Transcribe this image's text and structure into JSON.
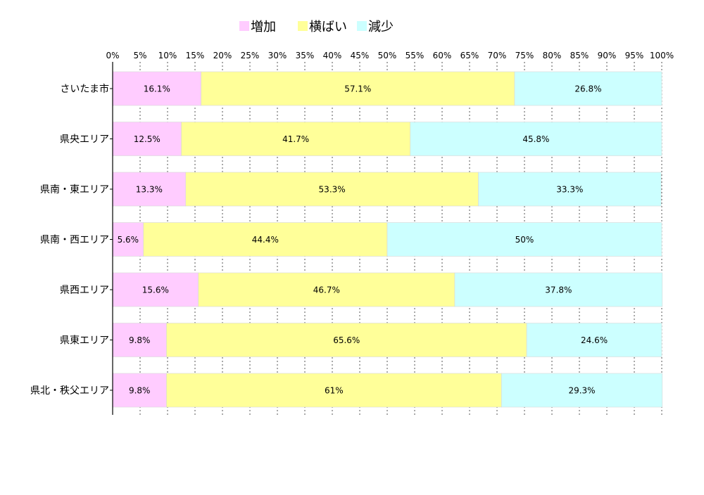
{
  "chart_data": {
    "type": "bar",
    "orientation": "horizontal",
    "stacked": true,
    "title": "",
    "xlabel": "",
    "ylabel": "",
    "xlim": [
      0,
      100
    ],
    "x_ticks": [
      0,
      5,
      10,
      15,
      20,
      25,
      30,
      35,
      40,
      45,
      50,
      55,
      60,
      65,
      70,
      75,
      80,
      85,
      90,
      95,
      100
    ],
    "tick_suffix": "%",
    "grid": "vertical dashed",
    "legend_position": "top",
    "categories": [
      "さいたま市",
      "県央エリア",
      "県南・東エリア",
      "県南・西エリア",
      "県西エリア",
      "県東エリア",
      "県北・秩父エリア"
    ],
    "series": [
      {
        "name": "増加",
        "color": "#ffccff",
        "values": [
          16.1,
          12.5,
          13.3,
          5.6,
          15.6,
          9.8,
          9.8
        ],
        "labels": [
          "16.1%",
          "12.5%",
          "13.3%",
          "5.6%",
          "15.6%",
          "9.8%",
          "9.8%"
        ]
      },
      {
        "name": "横ばい",
        "color": "#ffff99",
        "values": [
          57.1,
          41.7,
          53.3,
          44.4,
          46.7,
          65.6,
          61
        ],
        "labels": [
          "57.1%",
          "41.7%",
          "53.3%",
          "44.4%",
          "46.7%",
          "65.6%",
          "61%"
        ]
      },
      {
        "name": "減少",
        "color": "#ccffff",
        "values": [
          26.8,
          45.8,
          33.3,
          50,
          37.8,
          24.6,
          29.3
        ],
        "labels": [
          "26.8%",
          "45.8%",
          "33.3%",
          "50%",
          "37.8%",
          "24.6%",
          "29.3%"
        ]
      }
    ]
  }
}
